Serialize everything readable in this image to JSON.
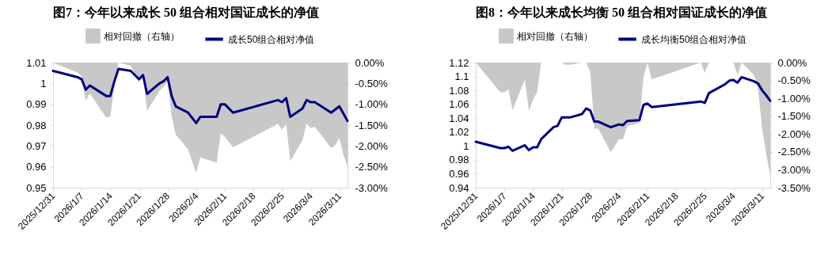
{
  "chart_data": [
    {
      "type": "line",
      "title": "图7：今年以来成长 50 组合相对国证成长的净值",
      "legend": "top",
      "xlim": [
        "2025-12-31",
        "2026-03-13"
      ],
      "xticks": [
        {
          "value": "2025-12-31",
          "label": "2025/12/31"
        },
        {
          "value": "2026-01-07",
          "label": "2026/1/7"
        },
        {
          "value": "2026-01-14",
          "label": "2026/1/14"
        },
        {
          "value": "2026-01-21",
          "label": "2026/1/21"
        },
        {
          "value": "2026-01-28",
          "label": "2026/1/28"
        },
        {
          "value": "2026-02-04",
          "label": "2026/2/4"
        },
        {
          "value": "2026-02-11",
          "label": "2026/2/11"
        },
        {
          "value": "2026-02-18",
          "label": "2026/2/18"
        },
        {
          "value": "2026-02-25",
          "label": "2026/2/25"
        },
        {
          "value": "2026-03-04",
          "label": "2026/3/4"
        },
        {
          "value": "2026-03-11",
          "label": "2026/3/11"
        }
      ],
      "ylim": [
        0.95,
        1.01
      ],
      "yticks": [
        0.95,
        0.96,
        0.97,
        0.98,
        0.99,
        1,
        1.01
      ],
      "y2lim": [
        -3,
        0
      ],
      "y2ticks": [
        {
          "value": 0,
          "label": "0.00%"
        },
        {
          "value": -0.5,
          "label": "-0.50%"
        },
        {
          "value": -1,
          "label": "-1.00%"
        },
        {
          "value": -1.5,
          "label": "-1.50%"
        },
        {
          "value": -2,
          "label": "-2.00%"
        },
        {
          "value": -2.5,
          "label": "-2.50%"
        },
        {
          "value": -3,
          "label": "-3.00%"
        }
      ],
      "series": [
        {
          "name": "相对回撤（右轴）",
          "type": "area",
          "axis": "y2",
          "color": "#c8c8c8",
          "x": [
            "2025-12-31",
            "2026-01-06",
            "2026-01-07",
            "2026-01-08",
            "2026-01-09",
            "2026-01-13",
            "2026-01-14",
            "2026-01-15",
            "2026-01-16",
            "2026-01-19",
            "2026-01-21",
            "2026-01-22",
            "2026-01-23",
            "2026-01-26",
            "2026-01-27",
            "2026-01-28",
            "2026-01-29",
            "2026-01-30",
            "2026-02-02",
            "2026-02-04",
            "2026-02-05",
            "2026-02-09",
            "2026-02-10",
            "2026-02-11",
            "2026-02-13",
            "2026-02-24",
            "2026-02-25",
            "2026-02-26",
            "2026-02-27",
            "2026-03-02",
            "2026-03-03",
            "2026-03-04",
            "2026-03-05",
            "2026-03-09",
            "2026-03-10",
            "2026-03-11",
            "2026-03-12",
            "2026-03-13"
          ],
          "values": [
            0,
            -0.24,
            -0.33,
            -0.93,
            -0.74,
            -1.32,
            -1.3,
            -0.55,
            0,
            -0.08,
            -0.46,
            -0.36,
            -1.16,
            -0.68,
            -0.58,
            -0.45,
            -1.28,
            -1.73,
            -2.08,
            -2.65,
            -2.27,
            -2.4,
            -1.7,
            -1.78,
            -2.03,
            -1.47,
            -1.61,
            -1.47,
            -2.36,
            -1.86,
            -1.46,
            -1.57,
            -1.54,
            -2.05,
            -1.98,
            -1.81,
            -2.21,
            -2.49
          ]
        },
        {
          "name": "成长50组合相对净值",
          "type": "line",
          "color": "#000080",
          "x": [
            "2025-12-31",
            "2026-01-06",
            "2026-01-07",
            "2026-01-08",
            "2026-01-09",
            "2026-01-13",
            "2026-01-14",
            "2026-01-15",
            "2026-01-16",
            "2026-01-19",
            "2026-01-21",
            "2026-01-22",
            "2026-01-23",
            "2026-01-26",
            "2026-01-27",
            "2026-01-28",
            "2026-01-29",
            "2026-01-30",
            "2026-02-02",
            "2026-02-04",
            "2026-02-05",
            "2026-02-09",
            "2026-02-10",
            "2026-02-11",
            "2026-02-13",
            "2026-02-24",
            "2026-02-25",
            "2026-02-26",
            "2026-02-27",
            "2026-03-02",
            "2026-03-03",
            "2026-03-04",
            "2026-03-05",
            "2026-03-09",
            "2026-03-11",
            "2026-03-13"
          ],
          "values": [
            1.006,
            1.003,
            1.002,
            0.997,
            0.999,
            0.994,
            0.994,
            1.001,
            1.007,
            1.006,
            1.002,
            1.004,
            0.995,
            1.0,
            1.001,
            1.003,
            0.994,
            0.989,
            0.986,
            0.981,
            0.984,
            0.984,
            0.99,
            0.99,
            0.986,
            0.992,
            0.991,
            0.993,
            0.984,
            0.988,
            0.992,
            0.991,
            0.991,
            0.986,
            0.989,
            0.982
          ]
        }
      ]
    },
    {
      "type": "line",
      "title": "图8：今年以来成长均衡 50 组合相对国证成长的净值",
      "legend": "top",
      "xlim": [
        "2025-12-31",
        "2026-03-13"
      ],
      "xticks": [
        {
          "value": "2025-12-31",
          "label": "2025/12/31"
        },
        {
          "value": "2026-01-07",
          "label": "2026/1/7"
        },
        {
          "value": "2026-01-14",
          "label": "2026/1/14"
        },
        {
          "value": "2026-01-21",
          "label": "2026/1/21"
        },
        {
          "value": "2026-01-28",
          "label": "2026/1/28"
        },
        {
          "value": "2026-02-04",
          "label": "2026/2/4"
        },
        {
          "value": "2026-02-11",
          "label": "2026/2/11"
        },
        {
          "value": "2026-02-18",
          "label": "2026/2/18"
        },
        {
          "value": "2026-02-25",
          "label": "2026/2/25"
        },
        {
          "value": "2026-03-04",
          "label": "2026/3/4"
        },
        {
          "value": "2026-03-11",
          "label": "2026/3/11"
        }
      ],
      "ylim": [
        0.94,
        1.12
      ],
      "yticks": [
        0.94,
        0.96,
        0.98,
        1,
        1.02,
        1.04,
        1.06,
        1.08,
        1.1,
        1.12
      ],
      "y2lim": [
        -3.5,
        0
      ],
      "y2ticks": [
        {
          "value": 0,
          "label": "0.00%"
        },
        {
          "value": -0.5,
          "label": "-0.50%"
        },
        {
          "value": -1,
          "label": "-1.00%"
        },
        {
          "value": -1.5,
          "label": "-1.50%"
        },
        {
          "value": -2,
          "label": "-2.00%"
        },
        {
          "value": -2.5,
          "label": "-2.50%"
        },
        {
          "value": -3,
          "label": "-3.00%"
        },
        {
          "value": -3.5,
          "label": "-3.50%"
        }
      ],
      "series": [
        {
          "name": "相对回撤（右轴）",
          "type": "area",
          "axis": "y2",
          "color": "#c8c8c8",
          "x": [
            "2025-12-31",
            "2026-01-06",
            "2026-01-07",
            "2026-01-08",
            "2026-01-09",
            "2026-01-12",
            "2026-01-13",
            "2026-01-14",
            "2026-01-15",
            "2026-01-16",
            "2026-01-21",
            "2026-01-22",
            "2026-01-23",
            "2026-01-26",
            "2026-01-27",
            "2026-01-28",
            "2026-01-29",
            "2026-01-30",
            "2026-02-02",
            "2026-02-04",
            "2026-02-05",
            "2026-02-06",
            "2026-02-09",
            "2026-02-10",
            "2026-02-11",
            "2026-02-12",
            "2026-02-24",
            "2026-02-25",
            "2026-02-26",
            "2026-03-04",
            "2026-03-05",
            "2026-03-06",
            "2026-03-09",
            "2026-03-10",
            "2026-03-11",
            "2026-03-12",
            "2026-03-13"
          ],
          "values": [
            0,
            -0.83,
            -0.83,
            -0.75,
            -1.33,
            -0.47,
            -1.35,
            -1.03,
            -0.83,
            0,
            0,
            -0.06,
            -0.06,
            0,
            0,
            -0.26,
            -1.85,
            -1.85,
            -2.51,
            -2.15,
            -2.15,
            -1.79,
            -1.67,
            -0.39,
            0,
            -0.47,
            0,
            -0.29,
            0,
            0,
            -0.35,
            0,
            -0.35,
            -0.71,
            -1.83,
            -2.55,
            -3.15
          ]
        },
        {
          "name": "成长均衡50组合相对净值",
          "type": "line",
          "color": "#000080",
          "x": [
            "2025-12-31",
            "2026-01-06",
            "2026-01-07",
            "2026-01-08",
            "2026-01-09",
            "2026-01-12",
            "2026-01-13",
            "2026-01-14",
            "2026-01-15",
            "2026-01-16",
            "2026-01-19",
            "2026-01-20",
            "2026-01-21",
            "2026-01-23",
            "2026-01-26",
            "2026-01-27",
            "2026-01-28",
            "2026-01-29",
            "2026-01-30",
            "2026-02-02",
            "2026-02-04",
            "2026-02-05",
            "2026-02-06",
            "2026-02-09",
            "2026-02-10",
            "2026-02-11",
            "2026-02-12",
            "2026-02-24",
            "2026-02-25",
            "2026-02-26",
            "2026-03-02",
            "2026-03-03",
            "2026-03-04",
            "2026-03-05",
            "2026-03-06",
            "2026-03-09",
            "2026-03-10",
            "2026-03-11",
            "2026-03-12",
            "2026-03-13"
          ],
          "values": [
            1.006,
            0.997,
            0.997,
            0.999,
            0.993,
            1.001,
            0.994,
            0.998,
            0.998,
            1.01,
            1.027,
            1.029,
            1.041,
            1.041,
            1.046,
            1.054,
            1.051,
            1.035,
            1.035,
            1.027,
            1.031,
            1.03,
            1.036,
            1.037,
            1.059,
            1.061,
            1.056,
            1.064,
            1.062,
            1.076,
            1.089,
            1.094,
            1.095,
            1.091,
            1.099,
            1.093,
            1.09,
            1.08,
            1.073,
            1.065
          ]
        }
      ]
    }
  ]
}
